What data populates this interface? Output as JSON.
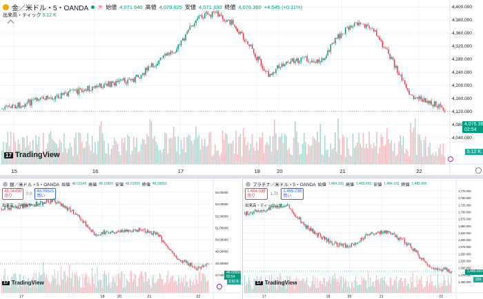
{
  "colors": {
    "up": "#089981",
    "down": "#f23645",
    "vol_up": "#a8d5cf",
    "vol_down": "#f7b8be",
    "grid": "#f0f3fa",
    "axis_text": "#131722"
  },
  "main": {
    "symbol": "金／米ドル・5・OANDA",
    "open_label": "始値",
    "open": "4,071.640",
    "high_label": "高値",
    "high": "4,079.925",
    "low_label": "安値",
    "low": "4,071.330",
    "close_label": "終値",
    "close": "4,076.360",
    "change": "+4.545 (+0.11%)",
    "volume_label": "出来高・ティック",
    "volume": "5.12 K",
    "price_tag": "4,076.360",
    "price_tag_time": "02:54",
    "volume_tag": "5.12 K",
    "logo": "TradingView",
    "y_ticks": [
      "4,400.000",
      "4,380.000",
      "4,360.000",
      "4,320.000",
      "4,280.000",
      "4,240.000",
      "4,200.000",
      "4,160.000",
      "4,120.000",
      "4,080.000",
      "4,040.000"
    ],
    "x_ticks": [
      "15",
      "16",
      "17",
      "18",
      "20",
      "21",
      "22"
    ]
  },
  "bottom_left": {
    "symbol": "銀／米ドル・5・OANDA",
    "bid": "48.04450",
    "bid_label": "売り",
    "spread": "0.0",
    "ask": "48.09621",
    "ask_label": "買い",
    "open_label": "始値",
    "open": "48.01549",
    "high_label": "高値",
    "high": "48.10950",
    "low_label": "安値",
    "low": "48.01050",
    "close_label": "終値",
    "close": "48.09950",
    "change": "+0.07900 (+0.16%)",
    "volume_label": "出来高・ティック",
    "volume": "2.61 K",
    "price_tag": "48.09950",
    "price_tag_time": "02:54",
    "volume_tag": "2.61 K",
    "logo": "TradingView",
    "y_ticks": [
      "54.00000",
      "53.00000",
      "52.00000",
      "51.00000",
      "50.00000",
      "49.00000",
      "48.00000",
      "47.00000"
    ],
    "x_ticks": [
      "17",
      "18",
      "20",
      "21",
      "22"
    ]
  },
  "bottom_right": {
    "symbol": "プラチナ／米ドル・5・OANDA",
    "bid": "1,484.035",
    "bid_label": "売り",
    "spread": "1.70",
    "ask": "1,485.735",
    "ask_label": "買い",
    "open_label": "始値",
    "open": "1,484.165",
    "high_label": "高値",
    "high": "1,485.665",
    "low_label": "安値",
    "low": "1,484.165",
    "close_label": "終値",
    "close": "1,485.665",
    "change": "+1.497 (+0.10%)",
    "volume_label": "出来高・ティック",
    "volume": "158",
    "price_tag": "1,485.665",
    "volume_tag": "158",
    "logo": "TradingView",
    "y_ticks": [
      "1,775.000",
      "1,750.000",
      "1,725.000",
      "1,700.000",
      "1,675.000",
      "1,650.000",
      "1,625.000",
      "1,600.000",
      "1,575.000",
      "1,550.000",
      "1,525.000",
      "1,500.000",
      "1,475.000",
      "1,450.000"
    ],
    "x_ticks": [
      "17",
      "18",
      "20",
      "21",
      "22"
    ]
  }
}
